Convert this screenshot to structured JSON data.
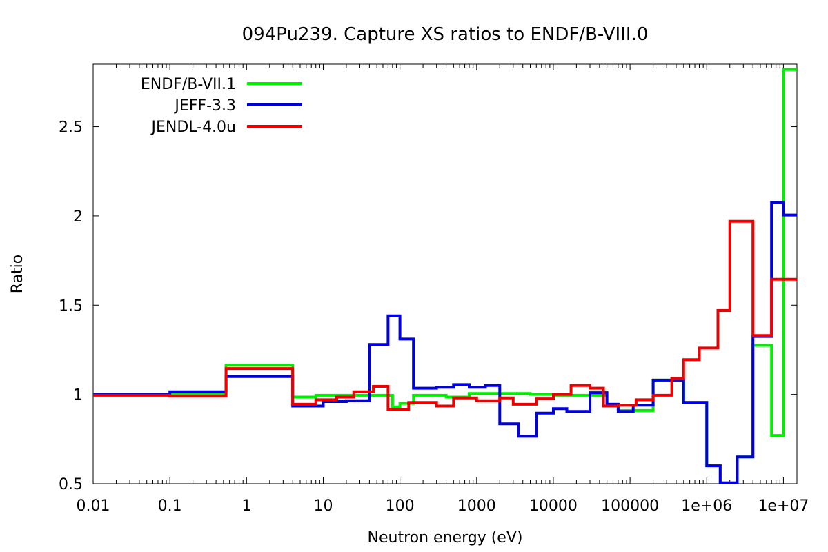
{
  "chart_data": {
    "type": "line",
    "title": "094Pu239. Capture XS ratios to ENDF/B-VIII.0",
    "xlabel": "Neutron energy (eV)",
    "ylabel": "Ratio",
    "xscale": "log",
    "xlim": [
      0.01,
      15000000
    ],
    "ylim": [
      0.5,
      2.85
    ],
    "x_ticks": [
      {
        "value": 0.01,
        "label": "0.01"
      },
      {
        "value": 0.1,
        "label": "0.1"
      },
      {
        "value": 1,
        "label": "1"
      },
      {
        "value": 10,
        "label": "10"
      },
      {
        "value": 100,
        "label": "100"
      },
      {
        "value": 1000,
        "label": "1000"
      },
      {
        "value": 10000,
        "label": "10000"
      },
      {
        "value": 100000,
        "label": "100000"
      },
      {
        "value": 1000000,
        "label": "1e+06"
      },
      {
        "value": 10000000,
        "label": "1e+07"
      }
    ],
    "y_ticks": [
      {
        "value": 0.5,
        "label": "0.5"
      },
      {
        "value": 1,
        "label": "1"
      },
      {
        "value": 1.5,
        "label": "1.5"
      },
      {
        "value": 2,
        "label": "2"
      },
      {
        "value": 2.5,
        "label": "2.5"
      }
    ],
    "legend_position": "top-left",
    "grid": false,
    "series": [
      {
        "name": "ENDF/B-VII.1",
        "color": "#00ee00",
        "steps": [
          [
            0.01,
            1.0
          ],
          [
            0.1,
            1.0
          ],
          [
            0.54,
            1.165
          ],
          [
            4.0,
            0.985
          ],
          [
            8.0,
            0.995
          ],
          [
            80.0,
            0.93
          ],
          [
            100.0,
            0.95
          ],
          [
            150.0,
            0.995
          ],
          [
            400.0,
            0.985
          ],
          [
            800.0,
            1.005
          ],
          [
            5000.0,
            1.0
          ],
          [
            10000.0,
            0.995
          ],
          [
            50000.0,
            0.945
          ],
          [
            70000.0,
            0.91
          ],
          [
            200000.0,
            1.08
          ],
          [
            500000.0,
            0.955
          ],
          [
            1000000.0,
            0.6
          ],
          [
            1500000.0,
            0.505
          ],
          [
            2500000.0,
            0.65
          ],
          [
            4000000.0,
            1.275
          ],
          [
            7000000.0,
            0.77
          ],
          [
            10000000.0,
            2.82
          ]
        ],
        "x_end": 15000000
      },
      {
        "name": "JEFF-3.3",
        "color": "#0000dd",
        "steps": [
          [
            0.01,
            1.0
          ],
          [
            0.1,
            1.015
          ],
          [
            0.54,
            1.1
          ],
          [
            4.0,
            0.935
          ],
          [
            10.0,
            0.96
          ],
          [
            20.0,
            0.965
          ],
          [
            40.0,
            1.28
          ],
          [
            70.0,
            1.44
          ],
          [
            100.0,
            1.31
          ],
          [
            150.0,
            1.035
          ],
          [
            300.0,
            1.04
          ],
          [
            500.0,
            1.055
          ],
          [
            800.0,
            1.04
          ],
          [
            1300.0,
            1.05
          ],
          [
            2000.0,
            0.835
          ],
          [
            3500.0,
            0.765
          ],
          [
            6000.0,
            0.895
          ],
          [
            10000.0,
            0.92
          ],
          [
            15000.0,
            0.905
          ],
          [
            30000.0,
            1.01
          ],
          [
            50000.0,
            0.945
          ],
          [
            70000.0,
            0.905
          ],
          [
            110000.0,
            0.94
          ],
          [
            200000.0,
            1.08
          ],
          [
            500000.0,
            0.955
          ],
          [
            1000000.0,
            0.6
          ],
          [
            1500000.0,
            0.505
          ],
          [
            2500000.0,
            0.65
          ],
          [
            4000000.0,
            1.325
          ],
          [
            7000000.0,
            2.075
          ],
          [
            10000000.0,
            2.005
          ]
        ],
        "x_end": 15000000
      },
      {
        "name": "JENDL-4.0u",
        "color": "#ee0000",
        "steps": [
          [
            0.01,
            0.995
          ],
          [
            0.1,
            0.99
          ],
          [
            0.54,
            1.145
          ],
          [
            4.0,
            0.945
          ],
          [
            8.0,
            0.97
          ],
          [
            15.0,
            0.985
          ],
          [
            25.0,
            1.015
          ],
          [
            45.0,
            1.045
          ],
          [
            70.0,
            0.915
          ],
          [
            130.0,
            0.955
          ],
          [
            300.0,
            0.935
          ],
          [
            500.0,
            0.98
          ],
          [
            1000.0,
            0.965
          ],
          [
            2000.0,
            0.98
          ],
          [
            3000.0,
            0.945
          ],
          [
            6000.0,
            0.975
          ],
          [
            10000.0,
            1.0
          ],
          [
            17000.0,
            1.05
          ],
          [
            30000.0,
            1.035
          ],
          [
            45000.0,
            0.935
          ],
          [
            70000.0,
            0.94
          ],
          [
            120000.0,
            0.97
          ],
          [
            200000.0,
            0.995
          ],
          [
            350000.0,
            1.09
          ],
          [
            500000.0,
            1.195
          ],
          [
            800000.0,
            1.26
          ],
          [
            1400000.0,
            1.47
          ],
          [
            2000000.0,
            1.97
          ],
          [
            4000000.0,
            1.33
          ],
          [
            7000000.0,
            1.645
          ]
        ],
        "x_end": 15000000
      }
    ]
  }
}
